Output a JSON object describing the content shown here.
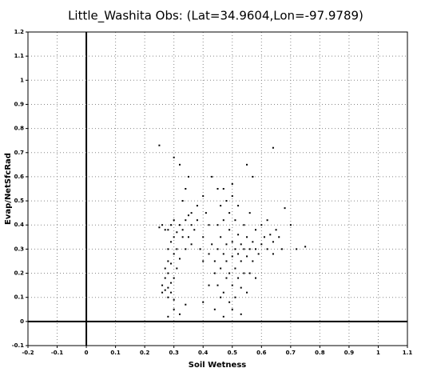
{
  "chart_data": {
    "type": "scatter",
    "title": "Little_Washita Obs: (Lat=34.9604,Lon=-97.9789)",
    "x_label": "Soil Wetness",
    "y_label": "Evap/NetSfcRad",
    "color": "#000000",
    "grid": true,
    "xlim": [
      -0.2,
      1.1
    ],
    "ylim": [
      -0.1,
      1.2
    ],
    "xticks": [
      -0.2,
      -0.1,
      0,
      0.1,
      0.2,
      0.3,
      0.4,
      0.5,
      0.6,
      0.7,
      0.8,
      0.9,
      1,
      1.1
    ],
    "yticks": [
      -0.1,
      0,
      0.1,
      0.2,
      0.3,
      0.4,
      0.5,
      0.6,
      0.7,
      0.8,
      0.9,
      1,
      1.1,
      1.2
    ],
    "x": [
      0.26,
      0.26,
      0.27,
      0.27,
      0.27,
      0.28,
      0.28,
      0.28,
      0.28,
      0.28,
      0.29,
      0.29,
      0.29,
      0.29,
      0.3,
      0.3,
      0.3,
      0.3,
      0.31,
      0.31,
      0.31,
      0.32,
      0.32,
      0.26,
      0.27,
      0.25,
      0.28,
      0.29,
      0.3,
      0.33,
      0.34,
      0.35,
      0.33,
      0.34,
      0.35,
      0.32,
      0.25,
      0.3,
      0.33,
      0.36,
      0.37,
      0.38,
      0.36,
      0.39,
      0.4,
      0.41,
      0.38,
      0.4,
      0.42,
      0.43,
      0.42,
      0.4,
      0.34,
      0.35,
      0.36,
      0.28,
      0.3,
      0.32,
      0.34,
      0.44,
      0.44,
      0.45,
      0.45,
      0.45,
      0.46,
      0.46,
      0.46,
      0.46,
      0.47,
      0.47,
      0.47,
      0.47,
      0.48,
      0.48,
      0.48,
      0.48,
      0.49,
      0.49,
      0.49,
      0.49,
      0.5,
      0.5,
      0.5,
      0.5,
      0.5,
      0.51,
      0.51,
      0.51,
      0.51,
      0.52,
      0.52,
      0.52,
      0.52,
      0.53,
      0.53,
      0.53,
      0.53,
      0.54,
      0.54,
      0.54,
      0.55,
      0.55,
      0.55,
      0.56,
      0.56,
      0.56,
      0.57,
      0.57,
      0.58,
      0.58,
      0.58,
      0.59,
      0.6,
      0.6,
      0.61,
      0.62,
      0.62,
      0.63,
      0.64,
      0.65,
      0.64,
      0.66,
      0.67,
      0.7,
      0.72,
      0.75,
      0.68,
      0.64,
      0.57,
      0.55,
      0.5,
      0.45,
      0.43,
      0.42,
      0.4,
      0.44,
      0.47
    ],
    "values": [
      0.12,
      0.15,
      0.13,
      0.18,
      0.22,
      0.14,
      0.2,
      0.25,
      0.3,
      0.38,
      0.16,
      0.24,
      0.33,
      0.4,
      0.18,
      0.28,
      0.35,
      0.42,
      0.22,
      0.3,
      0.37,
      0.26,
      0.4,
      0.4,
      0.38,
      0.39,
      0.1,
      0.12,
      0.09,
      0.35,
      0.42,
      0.44,
      0.5,
      0.55,
      0.6,
      0.65,
      0.73,
      0.68,
      0.38,
      0.45,
      0.38,
      0.42,
      0.32,
      0.3,
      0.35,
      0.45,
      0.48,
      0.52,
      0.4,
      0.32,
      0.28,
      0.25,
      0.3,
      0.35,
      0.4,
      0.02,
      0.05,
      0.03,
      0.07,
      0.2,
      0.25,
      0.15,
      0.3,
      0.4,
      0.1,
      0.22,
      0.35,
      0.48,
      0.12,
      0.28,
      0.42,
      0.55,
      0.18,
      0.25,
      0.32,
      0.5,
      0.08,
      0.2,
      0.38,
      0.45,
      0.05,
      0.15,
      0.27,
      0.33,
      0.52,
      0.1,
      0.22,
      0.3,
      0.42,
      0.18,
      0.28,
      0.36,
      0.48,
      0.03,
      0.14,
      0.25,
      0.32,
      0.2,
      0.3,
      0.4,
      0.12,
      0.27,
      0.35,
      0.2,
      0.3,
      0.45,
      0.25,
      0.33,
      0.18,
      0.3,
      0.38,
      0.28,
      0.32,
      0.4,
      0.35,
      0.3,
      0.42,
      0.36,
      0.33,
      0.38,
      0.28,
      0.35,
      0.3,
      0.4,
      0.3,
      0.31,
      0.47,
      0.72,
      0.6,
      0.65,
      0.57,
      0.55,
      0.6,
      0.15,
      0.08,
      0.05,
      0.02
    ]
  }
}
